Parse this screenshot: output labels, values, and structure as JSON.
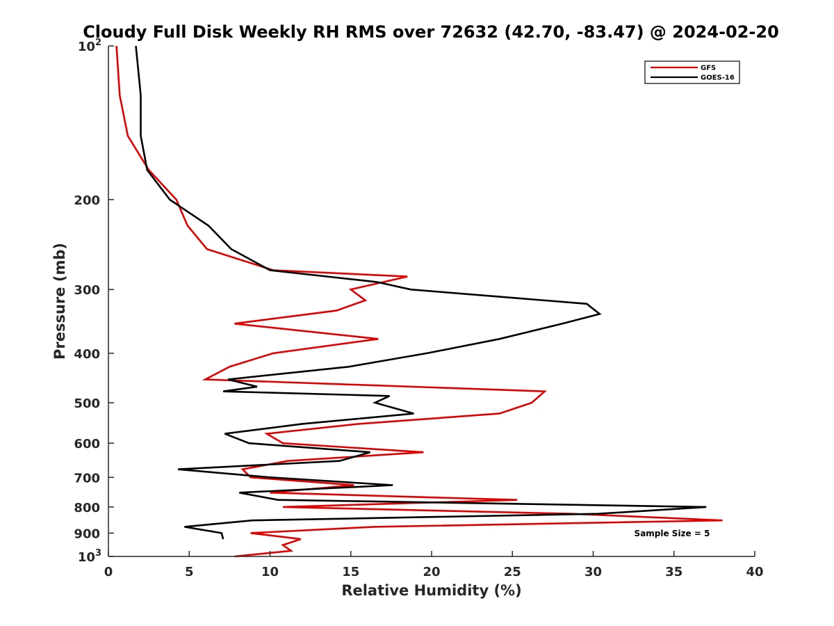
{
  "chart_data": {
    "type": "line",
    "title": "Cloudy Full Disk Weekly RH RMS over 72632 (42.70, -83.47) @ 2024-02-20",
    "xlabel": "Relative Humidity (%)",
    "ylabel": "Pressure (mb)",
    "xlim": [
      0,
      40
    ],
    "ylim": [
      100,
      1000
    ],
    "y_scale": "log",
    "y_reversed": true,
    "x_ticks": [
      "0",
      "5",
      "10",
      "15",
      "20",
      "25",
      "30",
      "35",
      "40"
    ],
    "y_ticks": [
      {
        "value": 100,
        "base": "10",
        "exp": "2",
        "label": ""
      },
      {
        "value": 200,
        "label": "200"
      },
      {
        "value": 300,
        "label": "300"
      },
      {
        "value": 400,
        "label": "400"
      },
      {
        "value": 500,
        "label": "500"
      },
      {
        "value": 600,
        "label": "600"
      },
      {
        "value": 700,
        "label": "700"
      },
      {
        "value": 800,
        "label": "800"
      },
      {
        "value": 900,
        "label": "900"
      },
      {
        "value": 1000,
        "base": "10",
        "exp": "3",
        "label": ""
      }
    ],
    "grid": false,
    "legend_position": "top-right",
    "annotation": "Sample Size = 5",
    "series": [
      {
        "name": "GFS",
        "color": "#e00000",
        "points": [
          [
            0.5,
            100
          ],
          [
            0.7,
            125
          ],
          [
            1.2,
            150
          ],
          [
            2.5,
            175
          ],
          [
            4.2,
            200
          ],
          [
            4.9,
            225
          ],
          [
            6.1,
            250
          ],
          [
            10.2,
            275
          ],
          [
            18.5,
            283
          ],
          [
            15.0,
            300
          ],
          [
            15.9,
            315
          ],
          [
            14.1,
            330
          ],
          [
            7.8,
            350
          ],
          [
            16.7,
            375
          ],
          [
            10.2,
            400
          ],
          [
            7.5,
            425
          ],
          [
            6.0,
            450
          ],
          [
            27.0,
            475
          ],
          [
            26.2,
            500
          ],
          [
            24.2,
            525
          ],
          [
            15.5,
            550
          ],
          [
            9.8,
            575
          ],
          [
            10.8,
            600
          ],
          [
            19.5,
            625
          ],
          [
            11.1,
            650
          ],
          [
            8.3,
            675
          ],
          [
            8.8,
            700
          ],
          [
            15.2,
            725
          ],
          [
            10.0,
            750
          ],
          [
            25.3,
            775
          ],
          [
            10.8,
            800
          ],
          [
            28.7,
            825
          ],
          [
            38.0,
            850
          ],
          [
            16.5,
            875
          ],
          [
            8.8,
            900
          ],
          [
            11.9,
            925
          ],
          [
            10.8,
            950
          ],
          [
            11.3,
            975
          ],
          [
            7.8,
            1000
          ]
        ]
      },
      {
        "name": "GOES-16",
        "color": "#000000",
        "points": [
          [
            1.7,
            100
          ],
          [
            2.0,
            125
          ],
          [
            2.0,
            150
          ],
          [
            2.4,
            175
          ],
          [
            3.8,
            200
          ],
          [
            6.2,
            225
          ],
          [
            7.6,
            250
          ],
          [
            10.0,
            275
          ],
          [
            16.6,
            290
          ],
          [
            18.7,
            300
          ],
          [
            29.6,
            320
          ],
          [
            30.4,
            335
          ],
          [
            28.1,
            350
          ],
          [
            24.2,
            375
          ],
          [
            19.7,
            400
          ],
          [
            14.9,
            425
          ],
          [
            7.4,
            450
          ],
          [
            9.2,
            465
          ],
          [
            7.1,
            475
          ],
          [
            17.4,
            485
          ],
          [
            16.5,
            500
          ],
          [
            18.9,
            525
          ],
          [
            12.0,
            550
          ],
          [
            7.2,
            575
          ],
          [
            8.7,
            600
          ],
          [
            16.2,
            625
          ],
          [
            14.3,
            650
          ],
          [
            4.3,
            675
          ],
          [
            10.0,
            700
          ],
          [
            17.6,
            725
          ],
          [
            8.1,
            750
          ],
          [
            10.5,
            775
          ],
          [
            37.0,
            800
          ],
          [
            30.3,
            825
          ],
          [
            8.9,
            850
          ],
          [
            4.7,
            875
          ],
          [
            7.0,
            900
          ],
          [
            7.1,
            925
          ]
        ]
      }
    ]
  }
}
